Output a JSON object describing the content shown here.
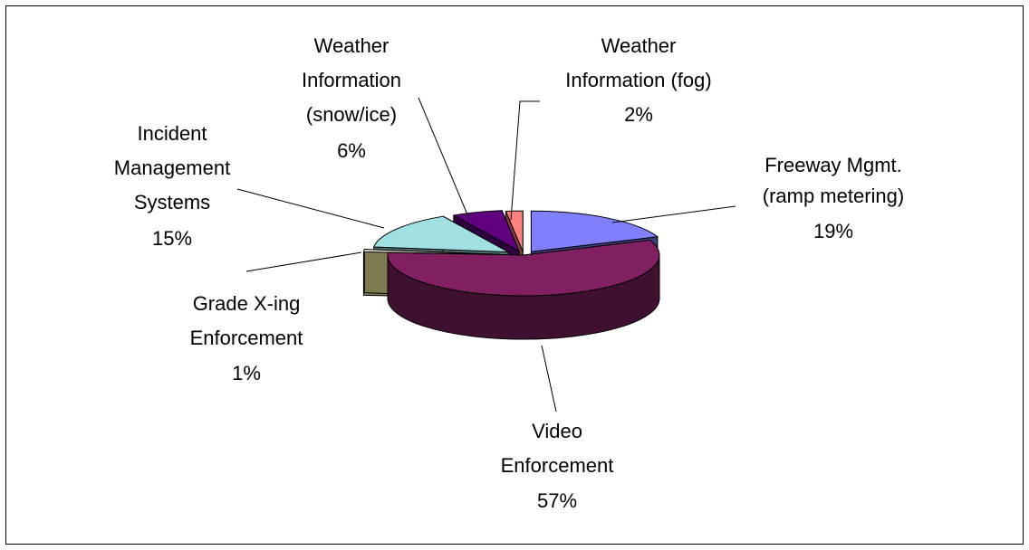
{
  "chart_data": {
    "type": "pie",
    "title": "",
    "legend": "none",
    "exploded": true,
    "three_d": true,
    "slices": [
      {
        "label_lines": [
          "Freeway Mgmt.",
          "(ramp metering)"
        ],
        "percent_label": "19%",
        "value": 19,
        "color": "#8080ff",
        "side_color": "#404080"
      },
      {
        "label_lines": [
          "Video",
          "Enforcement"
        ],
        "percent_label": "57%",
        "value": 57,
        "color": "#802060",
        "side_color": "#401030"
      },
      {
        "label_lines": [
          "Grade X-ing",
          "Enforcement"
        ],
        "percent_label": "1%",
        "value": 1,
        "color": "#f4f2e0",
        "side_color": "#807a50"
      },
      {
        "label_lines": [
          "Incident",
          "Management",
          "Systems"
        ],
        "percent_label": "15%",
        "value": 15,
        "color": "#a0e0e0",
        "side_color": "#507070"
      },
      {
        "label_lines": [
          "Weather",
          "Information",
          "(snow/ice)"
        ],
        "percent_label": "6%",
        "value": 6,
        "color": "#600080",
        "side_color": "#300040"
      },
      {
        "label_lines": [
          "Weather",
          "Information (fog)"
        ],
        "percent_label": "2%",
        "value": 2,
        "color": "#ff8080",
        "side_color": "#804040"
      }
    ]
  }
}
